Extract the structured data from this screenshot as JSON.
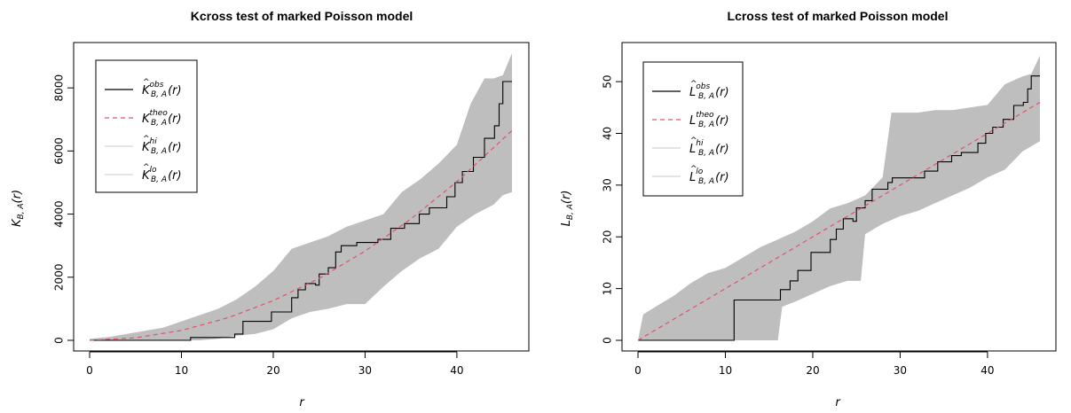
{
  "chart_data": [
    {
      "type": "line",
      "title": "Kcross test of marked Poisson model",
      "xlabel": "r",
      "ylabel": {
        "main": "K",
        "sub": "B, A",
        "arg": "(r)"
      },
      "xlim": [
        0,
        46
      ],
      "ylim": [
        0,
        9100
      ],
      "xticks": [
        0,
        10,
        20,
        30,
        40
      ],
      "yticks": [
        0,
        2000,
        4000,
        6000,
        8000
      ],
      "legend_position": "top-left",
      "series": [
        {
          "name": "obs",
          "label": {
            "main": "K",
            "sup": "obs",
            "sub": "B, A",
            "arg": "(r)",
            "hat": true
          },
          "color": "#000000",
          "style": "solid",
          "kind": "step",
          "x": [
            0,
            10.9,
            11.0,
            15.8,
            16.7,
            17.4,
            19.8,
            21.7,
            22.0,
            22.7,
            23.5,
            24.6,
            25.0,
            26.0,
            26.8,
            27.4,
            28.6,
            29.1,
            31.4,
            32.8,
            34.3,
            35.9,
            37.0,
            38.9,
            39.8,
            40.6,
            41.8,
            43.0,
            44.1,
            44.6,
            45.0,
            46.0
          ],
          "y": [
            0,
            0,
            90,
            200,
            600,
            600,
            900,
            900,
            1350,
            1600,
            1800,
            1750,
            2100,
            2300,
            2800,
            3000,
            3000,
            3100,
            3200,
            3550,
            3700,
            4000,
            4200,
            4550,
            5000,
            5350,
            5800,
            6400,
            6800,
            7500,
            8200,
            8200
          ]
        },
        {
          "name": "theo",
          "label": {
            "main": "K",
            "sup": "theo",
            "sub": "B, A",
            "arg": "(r)",
            "hat": false
          },
          "color": "#df536b",
          "style": "dashed",
          "kind": "curve",
          "x": [
            0,
            5,
            10,
            15,
            20,
            25,
            30,
            35,
            40,
            46
          ],
          "y": [
            0,
            79,
            314,
            707,
            1257,
            1963,
            2827,
            3848,
            5027,
            6648
          ]
        },
        {
          "name": "hi",
          "label": {
            "main": "K",
            "sup": "hi",
            "sub": "B, A",
            "arg": "(r)",
            "hat": true
          },
          "color": "#d3d3d3",
          "style": "solid",
          "kind": "band-upper",
          "x": [
            0,
            2,
            4,
            6,
            8,
            10,
            12,
            14,
            16,
            18,
            20,
            22,
            24,
            26,
            28,
            30,
            32,
            34,
            36,
            38,
            40,
            41.5,
            43,
            44,
            45,
            46
          ],
          "y": [
            50,
            100,
            200,
            300,
            400,
            600,
            800,
            1000,
            1300,
            1700,
            2200,
            2900,
            3100,
            3300,
            3600,
            3800,
            4000,
            4700,
            5100,
            5600,
            6200,
            7500,
            8300,
            8300,
            8400,
            9100
          ]
        },
        {
          "name": "lo",
          "label": {
            "main": "K",
            "sup": "lo",
            "sub": "B, A",
            "arg": "(r)",
            "hat": true
          },
          "color": "#d3d3d3",
          "style": "solid",
          "kind": "band-lower",
          "x": [
            0,
            6,
            12,
            14,
            16,
            18,
            20,
            22,
            24,
            26,
            28,
            30,
            32,
            34,
            36,
            38,
            40,
            42,
            44,
            45,
            46
          ],
          "y": [
            0,
            0,
            0,
            50,
            150,
            200,
            350,
            700,
            900,
            1000,
            1150,
            1150,
            1700,
            2200,
            2600,
            2900,
            3600,
            4000,
            4300,
            4600,
            4700
          ]
        }
      ]
    },
    {
      "type": "line",
      "title": "Lcross test of marked Poisson model",
      "xlabel": "r",
      "ylabel": {
        "main": "L",
        "sub": "B, A",
        "arg": "(r)"
      },
      "xlim": [
        0,
        46
      ],
      "ylim": [
        0,
        55.5
      ],
      "xticks": [
        0,
        10,
        20,
        30,
        40
      ],
      "yticks": [
        0,
        10,
        20,
        30,
        40,
        50
      ],
      "legend_position": "top-left",
      "series": [
        {
          "name": "obs",
          "label": {
            "main": "L",
            "sup": "obs",
            "sub": "B, A",
            "arg": "(r)",
            "hat": true
          },
          "color": "#000000",
          "style": "solid",
          "kind": "step",
          "x": [
            0,
            10.9,
            11.0,
            15.0,
            16.3,
            17.4,
            18.3,
            19.8,
            21.7,
            22.0,
            22.7,
            23.5,
            24.6,
            25.0,
            26.0,
            26.8,
            27.4,
            28.6,
            29.1,
            31.4,
            32.8,
            34.3,
            35.9,
            37.0,
            38.9,
            39.8,
            40.6,
            41.8,
            43.0,
            44.1,
            44.6,
            45.0,
            46.0
          ],
          "y": [
            0,
            0,
            7.8,
            7.8,
            9.8,
            11.5,
            13.5,
            17.0,
            17.0,
            19.5,
            21.5,
            23.5,
            23.0,
            25.6,
            27.0,
            29.2,
            29.2,
            30.5,
            31.4,
            31.4,
            32.7,
            34.5,
            35.7,
            36.3,
            38.1,
            40.0,
            41.2,
            42.7,
            45.4,
            46.0,
            48.6,
            51.1,
            51.1
          ]
        },
        {
          "name": "theo",
          "label": {
            "main": "L",
            "sup": "theo",
            "sub": "B, A",
            "arg": "(r)",
            "hat": false
          },
          "color": "#df536b",
          "style": "dashed",
          "kind": "curve",
          "x": [
            0,
            46
          ],
          "y": [
            0,
            46
          ]
        },
        {
          "name": "hi",
          "label": {
            "main": "L",
            "sup": "hi",
            "sub": "B, A",
            "arg": "(r)",
            "hat": true
          },
          "color": "#d3d3d3",
          "style": "solid",
          "kind": "band-upper",
          "x": [
            0,
            0.6,
            2,
            4,
            6,
            8,
            10,
            12,
            14,
            16,
            18,
            20,
            22,
            24,
            26,
            28,
            29,
            32,
            34,
            36,
            38,
            40,
            42,
            44,
            45,
            46
          ],
          "y": [
            0,
            5,
            6.5,
            8.5,
            11,
            13,
            14,
            16,
            18,
            19.5,
            21,
            23,
            25.5,
            26.5,
            28,
            31.5,
            44,
            44,
            44.5,
            44.5,
            45,
            45.5,
            49.5,
            51,
            51.5,
            55
          ]
        },
        {
          "name": "lo",
          "label": {
            "main": "L",
            "sup": "lo",
            "sub": "B, A",
            "arg": "(r)",
            "hat": true
          },
          "color": "#d3d3d3",
          "style": "solid",
          "kind": "band-lower",
          "x": [
            0,
            16,
            16.5,
            18,
            20,
            22,
            24,
            25.5,
            26,
            28,
            30,
            32,
            34,
            36,
            38,
            40,
            42,
            44,
            45,
            46
          ],
          "y": [
            0,
            0,
            6.5,
            7.5,
            9,
            10.5,
            11.5,
            11.5,
            20.5,
            22.5,
            24,
            25,
            26.5,
            28,
            29.5,
            31.5,
            33,
            36.5,
            37.5,
            38.5
          ]
        }
      ]
    }
  ]
}
